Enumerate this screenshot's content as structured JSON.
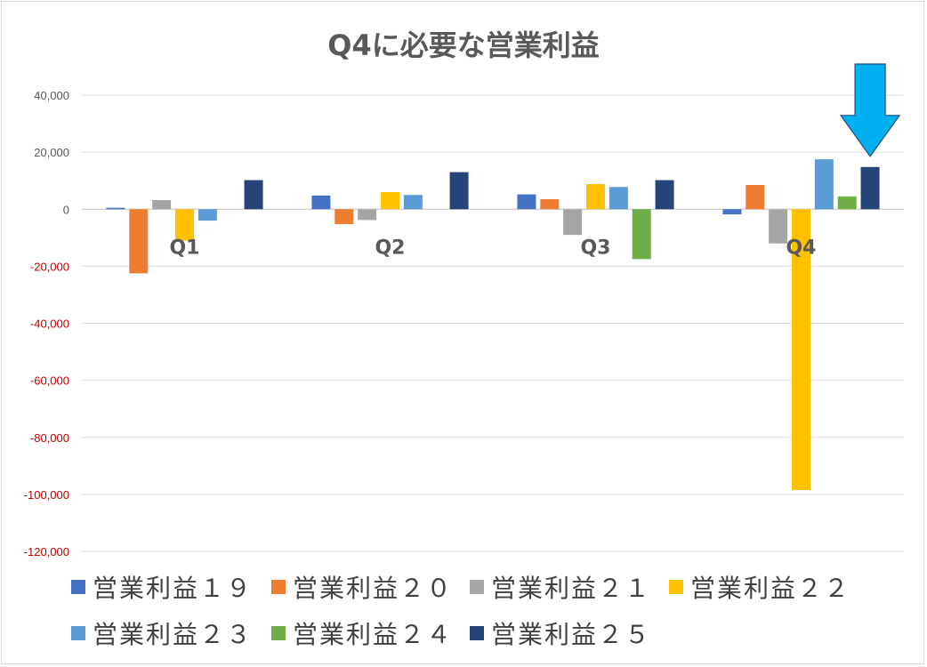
{
  "chart_data": {
    "type": "bar",
    "title": "Q4に必要な営業利益",
    "categories": [
      "Q1",
      "Q2",
      "Q3",
      "Q4"
    ],
    "ylim": [
      -120000,
      40000
    ],
    "yticks": [
      -120000,
      -100000,
      -80000,
      -60000,
      -40000,
      -20000,
      0,
      20000,
      40000
    ],
    "ytick_labels": [
      "-120,000",
      "-100,000",
      "-80,000",
      "-60,000",
      "-40,000",
      "-20,000",
      "0",
      "20,000",
      "40,000"
    ],
    "negative_tick_color": "#c00000",
    "positive_tick_color": "#595959",
    "grid": true,
    "legend_position": "bottom",
    "series": [
      {
        "name": "営業利益１９",
        "color": "#4472c4",
        "values": [
          500,
          4800,
          5200,
          -1800
        ]
      },
      {
        "name": "営業利益２０",
        "color": "#ed7d31",
        "values": [
          -22500,
          -5200,
          3500,
          8500
        ]
      },
      {
        "name": "営業利益２１",
        "color": "#a5a5a5",
        "values": [
          3200,
          -3800,
          -9000,
          -12000
        ]
      },
      {
        "name": "営業利益２２",
        "color": "#ffc000",
        "values": [
          -11000,
          6000,
          8800,
          -98500
        ]
      },
      {
        "name": "営業利益２３",
        "color": "#5b9bd5",
        "values": [
          -4000,
          5000,
          7800,
          17500
        ]
      },
      {
        "name": "営業利益２４",
        "color": "#70ad47",
        "values": [
          0,
          0,
          -17500,
          4500
        ]
      },
      {
        "name": "営業利益２５",
        "color": "#264478",
        "values": [
          10200,
          13000,
          10200,
          14800
        ]
      }
    ],
    "annotation": {
      "type": "arrow",
      "direction": "down",
      "color": "#00b0f0",
      "target": "Q4 営業利益２５"
    }
  }
}
